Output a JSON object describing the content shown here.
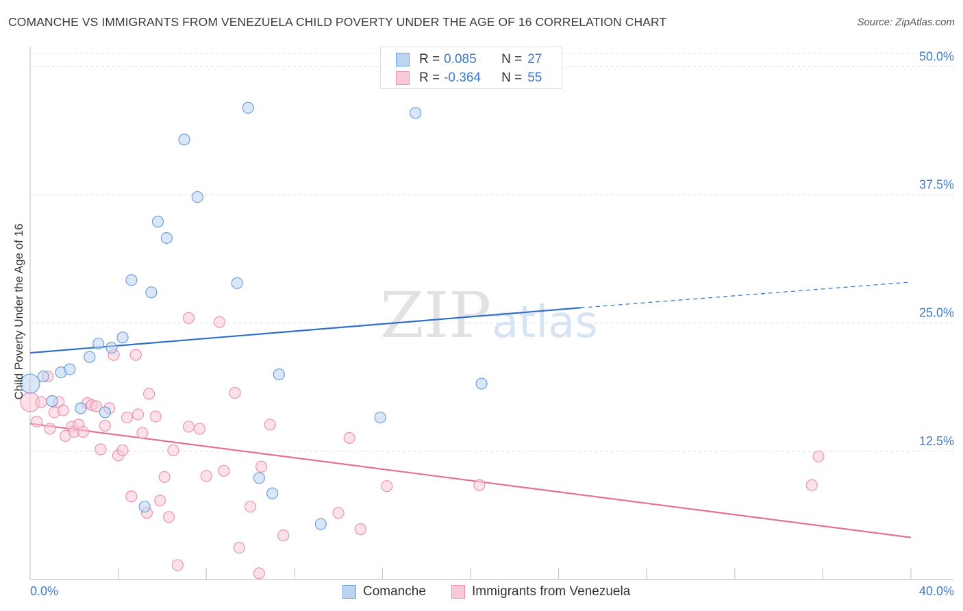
{
  "header": {
    "title": "COMANCHE VS IMMIGRANTS FROM VENEZUELA CHILD POVERTY UNDER THE AGE OF 16 CORRELATION CHART",
    "source": "Source: ZipAtlas.com"
  },
  "watermark": {
    "zip": "ZIP",
    "atlas": "atlas"
  },
  "legend": {
    "r_label": "R =",
    "n_label": "N =",
    "series": [
      {
        "name": "Comanche",
        "r": "0.085",
        "n": "27",
        "fill": "#bcd4f2",
        "stroke": "#6d9fdc"
      },
      {
        "name": "Immigrants from Venezuela",
        "r": "-0.364",
        "n": "55",
        "fill": "#f9c9d7",
        "stroke": "#ec93b0"
      }
    ]
  },
  "colors": {
    "blue_line": "#2f6fc7",
    "pink_line": "#e4709a",
    "tick_label": "#3b78c8",
    "grid": "#dcdcdc"
  },
  "chart_data": {
    "type": "scatter",
    "title": "COMANCHE VS IMMIGRANTS FROM VENEZUELA CHILD POVERTY UNDER THE AGE OF 16 CORRELATION CHART",
    "xlabel": "",
    "ylabel": "Child Poverty Under the Age of 16",
    "xlim": [
      0,
      40
    ],
    "ylim": [
      0,
      51.5
    ],
    "x_tick_labels": [
      {
        "value": 0,
        "label": "0.0%"
      },
      {
        "value": 40,
        "label": "40.0%"
      }
    ],
    "x_minor_ticks": [
      4,
      8,
      12,
      16,
      20,
      24,
      28,
      32,
      36,
      40
    ],
    "y_ticks": [
      {
        "value": 12.5,
        "label": "12.5%"
      },
      {
        "value": 25.0,
        "label": "25.0%"
      },
      {
        "value": 37.5,
        "label": "37.5%"
      },
      {
        "value": 50.0,
        "label": "50.0%"
      }
    ],
    "grid": true,
    "legend_position": "top-center",
    "series": [
      {
        "name": "Comanche",
        "points": [
          {
            "x": 0.0,
            "y": 19.1,
            "big": true
          },
          {
            "x": 0.6,
            "y": 19.8
          },
          {
            "x": 1.0,
            "y": 17.4
          },
          {
            "x": 1.4,
            "y": 20.2
          },
          {
            "x": 1.8,
            "y": 20.5
          },
          {
            "x": 2.3,
            "y": 16.7
          },
          {
            "x": 2.7,
            "y": 21.7
          },
          {
            "x": 3.1,
            "y": 23.0
          },
          {
            "x": 3.4,
            "y": 16.3
          },
          {
            "x": 3.7,
            "y": 22.6
          },
          {
            "x": 4.2,
            "y": 23.6
          },
          {
            "x": 4.6,
            "y": 29.2
          },
          {
            "x": 5.2,
            "y": 7.1
          },
          {
            "x": 5.5,
            "y": 28.0
          },
          {
            "x": 5.8,
            "y": 34.9
          },
          {
            "x": 6.2,
            "y": 33.3
          },
          {
            "x": 7.0,
            "y": 42.9
          },
          {
            "x": 7.6,
            "y": 37.3
          },
          {
            "x": 9.4,
            "y": 28.9
          },
          {
            "x": 9.9,
            "y": 46.0
          },
          {
            "x": 10.4,
            "y": 9.9
          },
          {
            "x": 11.0,
            "y": 8.4
          },
          {
            "x": 11.3,
            "y": 20.0
          },
          {
            "x": 13.2,
            "y": 5.4
          },
          {
            "x": 15.9,
            "y": 15.8
          },
          {
            "x": 17.5,
            "y": 45.5
          },
          {
            "x": 20.5,
            "y": 19.1
          }
        ],
        "trend": {
          "x0": 0,
          "y0": 22.1,
          "x1": 25.0,
          "y1": 26.5,
          "dash_to_x": 40,
          "dash_to_y": 29.0
        }
      },
      {
        "name": "Immigrants from Venezuela",
        "points": [
          {
            "x": 0.0,
            "y": 17.3,
            "big": true
          },
          {
            "x": 0.3,
            "y": 15.4
          },
          {
            "x": 0.5,
            "y": 17.3
          },
          {
            "x": 0.8,
            "y": 19.8
          },
          {
            "x": 0.9,
            "y": 14.7
          },
          {
            "x": 1.1,
            "y": 16.3
          },
          {
            "x": 1.3,
            "y": 17.3
          },
          {
            "x": 1.5,
            "y": 16.5
          },
          {
            "x": 1.6,
            "y": 14.0
          },
          {
            "x": 1.9,
            "y": 14.9
          },
          {
            "x": 2.0,
            "y": 14.4
          },
          {
            "x": 2.2,
            "y": 15.1
          },
          {
            "x": 2.4,
            "y": 14.4
          },
          {
            "x": 2.6,
            "y": 17.2
          },
          {
            "x": 2.8,
            "y": 17.0
          },
          {
            "x": 3.0,
            "y": 16.9
          },
          {
            "x": 3.2,
            "y": 12.7
          },
          {
            "x": 3.4,
            "y": 15.0
          },
          {
            "x": 3.6,
            "y": 16.7
          },
          {
            "x": 3.8,
            "y": 21.9
          },
          {
            "x": 4.0,
            "y": 12.1
          },
          {
            "x": 4.2,
            "y": 12.6
          },
          {
            "x": 4.4,
            "y": 15.8
          },
          {
            "x": 4.6,
            "y": 8.1
          },
          {
            "x": 4.8,
            "y": 21.9
          },
          {
            "x": 4.9,
            "y": 16.1
          },
          {
            "x": 5.1,
            "y": 14.3
          },
          {
            "x": 5.3,
            "y": 6.5
          },
          {
            "x": 5.4,
            "y": 18.1
          },
          {
            "x": 5.7,
            "y": 15.9
          },
          {
            "x": 5.9,
            "y": 7.7
          },
          {
            "x": 6.1,
            "y": 10.0
          },
          {
            "x": 6.3,
            "y": 6.1
          },
          {
            "x": 6.5,
            "y": 12.6
          },
          {
            "x": 6.7,
            "y": 1.4
          },
          {
            "x": 7.2,
            "y": 25.5
          },
          {
            "x": 7.2,
            "y": 14.9
          },
          {
            "x": 7.7,
            "y": 14.7
          },
          {
            "x": 8.0,
            "y": 10.1
          },
          {
            "x": 8.6,
            "y": 25.1
          },
          {
            "x": 8.8,
            "y": 10.6
          },
          {
            "x": 9.3,
            "y": 18.2
          },
          {
            "x": 9.5,
            "y": 3.1
          },
          {
            "x": 10.0,
            "y": 7.1
          },
          {
            "x": 10.4,
            "y": 0.6
          },
          {
            "x": 10.5,
            "y": 11.0
          },
          {
            "x": 10.9,
            "y": 15.1
          },
          {
            "x": 11.5,
            "y": 4.3
          },
          {
            "x": 14.0,
            "y": 6.5
          },
          {
            "x": 14.5,
            "y": 13.8
          },
          {
            "x": 15.0,
            "y": 4.9
          },
          {
            "x": 16.2,
            "y": 9.1
          },
          {
            "x": 20.4,
            "y": 9.2
          },
          {
            "x": 35.5,
            "y": 9.2
          },
          {
            "x": 35.8,
            "y": 12.0
          }
        ],
        "trend": {
          "x0": 0,
          "y0": 15.2,
          "x1": 40,
          "y1": 4.1
        }
      }
    ]
  }
}
